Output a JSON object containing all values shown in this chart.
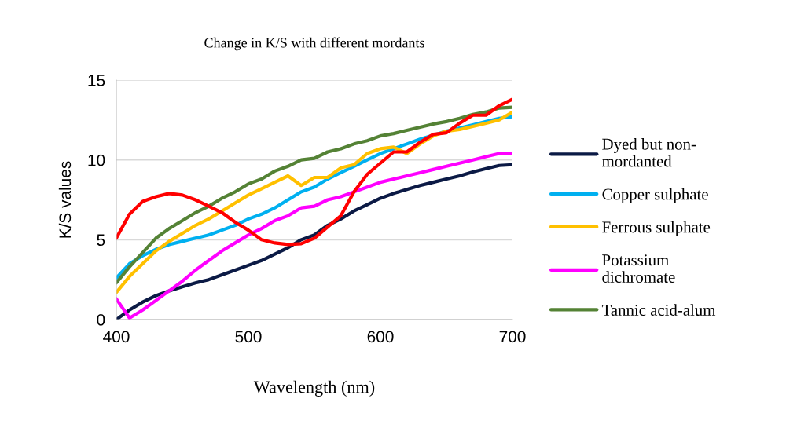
{
  "chart_data": {
    "type": "line",
    "title": "Change in K/S with different mordants",
    "xlabel": "Wavelength (nm)",
    "ylabel": "K/S values",
    "x": [
      400,
      410,
      420,
      430,
      440,
      450,
      460,
      470,
      480,
      490,
      500,
      510,
      520,
      530,
      540,
      550,
      560,
      570,
      580,
      590,
      600,
      610,
      620,
      630,
      640,
      650,
      660,
      670,
      680,
      690,
      700
    ],
    "series": [
      {
        "name": "Dyed but non-\nmordanted",
        "color": "#0b1a45",
        "values": [
          0,
          0.6,
          1.1,
          1.5,
          1.8,
          2.05,
          2.3,
          2.5,
          2.8,
          3.1,
          3.4,
          3.7,
          4.1,
          4.5,
          5.0,
          5.3,
          5.9,
          6.3,
          6.8,
          7.2,
          7.6,
          7.9,
          8.15,
          8.4,
          8.6,
          8.8,
          9.0,
          9.25,
          9.45,
          9.65,
          9.7
        ]
      },
      {
        "name": "Copper sulphate",
        "color": "#00b0f0",
        "values": [
          2.6,
          3.5,
          4.0,
          4.4,
          4.7,
          4.9,
          5.1,
          5.3,
          5.6,
          5.9,
          6.3,
          6.6,
          7.0,
          7.5,
          8.0,
          8.3,
          8.8,
          9.2,
          9.6,
          10.0,
          10.4,
          10.7,
          11.0,
          11.3,
          11.55,
          11.8,
          12.0,
          12.2,
          12.4,
          12.6,
          12.7
        ]
      },
      {
        "name": "Ferrous sulphate",
        "color": "#ffc000",
        "values": [
          1.7,
          2.7,
          3.5,
          4.3,
          4.9,
          5.4,
          5.9,
          6.3,
          6.8,
          7.3,
          7.8,
          8.2,
          8.6,
          9.0,
          8.4,
          8.9,
          8.9,
          9.5,
          9.7,
          10.4,
          10.7,
          10.8,
          10.4,
          11.0,
          11.5,
          11.8,
          11.9,
          12.1,
          12.3,
          12.5,
          13.0
        ]
      },
      {
        "name": "Potassium\ndichromate",
        "color": "#ff00ff",
        "values": [
          1.3,
          0.1,
          0.6,
          1.2,
          1.8,
          2.4,
          3.1,
          3.7,
          4.3,
          4.8,
          5.3,
          5.7,
          6.2,
          6.5,
          7.0,
          7.1,
          7.5,
          7.7,
          8.0,
          8.3,
          8.6,
          8.8,
          9.0,
          9.2,
          9.4,
          9.6,
          9.8,
          10.0,
          10.2,
          10.4,
          10.4
        ]
      },
      {
        "name": "Tannic acid-alum",
        "color": "#548235",
        "values": [
          2.3,
          3.3,
          4.2,
          5.1,
          5.7,
          6.2,
          6.7,
          7.1,
          7.6,
          8.0,
          8.5,
          8.8,
          9.3,
          9.6,
          10.0,
          10.1,
          10.5,
          10.7,
          11.0,
          11.2,
          11.5,
          11.65,
          11.85,
          12.05,
          12.25,
          12.4,
          12.6,
          12.85,
          13.0,
          13.25,
          13.3
        ]
      },
      {
        "color": "#ff0000",
        "values": [
          5.1,
          6.6,
          7.4,
          7.7,
          7.9,
          7.8,
          7.5,
          7.1,
          6.7,
          6.1,
          5.6,
          5.0,
          4.8,
          4.7,
          4.75,
          5.1,
          5.8,
          6.5,
          8.0,
          9.1,
          9.8,
          10.5,
          10.5,
          11.1,
          11.6,
          11.7,
          12.3,
          12.8,
          12.8,
          13.4,
          13.8
        ]
      }
    ],
    "xlim": [
      400,
      700
    ],
    "xticks": [
      400,
      500,
      600,
      700
    ],
    "ylim": [
      0,
      15
    ],
    "yticks": [
      0,
      5,
      10,
      15
    ],
    "grid": "y",
    "legend": "right",
    "marker": "none",
    "line_style": "solid"
  }
}
